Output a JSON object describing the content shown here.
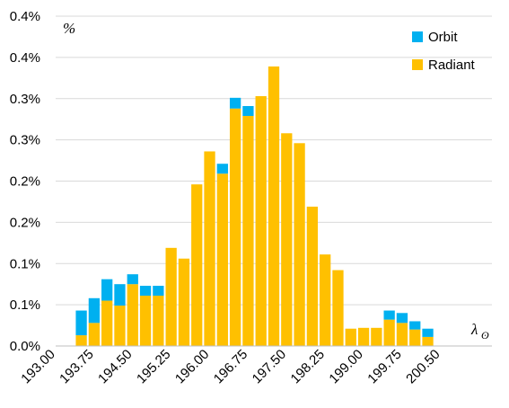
{
  "chart_data": {
    "type": "bar",
    "stacked": true,
    "y_unit_label": "%",
    "x_unit_label": "λ",
    "x_unit_subscript": "ʘ",
    "xlim": [
      193.0,
      201.5
    ],
    "ylim": [
      0,
      0.4
    ],
    "grid": "horizontal",
    "legend_position": "top-right",
    "y_tick_values": [
      0.0,
      0.05,
      0.1,
      0.15,
      0.2,
      0.25,
      0.3,
      0.35,
      0.4
    ],
    "y_tick_labels": [
      "0.0%",
      "0.1%",
      "0.1%",
      "0.2%",
      "0.2%",
      "0.3%",
      "0.3%",
      "0.4%",
      "0.4%"
    ],
    "x_tick_values": [
      193.0,
      193.75,
      194.5,
      195.25,
      196.0,
      196.75,
      197.5,
      198.25,
      199.0,
      199.75,
      200.5
    ],
    "x_tick_labels": [
      "193.00",
      "193.75",
      "194.50",
      "195.25",
      "196.00",
      "196.75",
      "197.50",
      "198.25",
      "199.00",
      "199.75",
      "200.50"
    ],
    "x": [
      193.5,
      193.75,
      194.0,
      194.25,
      194.5,
      194.75,
      195.0,
      195.25,
      195.5,
      195.75,
      196.0,
      196.25,
      196.5,
      196.75,
      197.0,
      197.25,
      197.5,
      197.75,
      198.0,
      198.25,
      198.5,
      198.75,
      199.0,
      199.25,
      199.5,
      199.75,
      200.0,
      200.25
    ],
    "series": [
      {
        "name": "Radiant",
        "color": "#FFC000",
        "values": [
          0.013,
          0.028,
          0.055,
          0.049,
          0.075,
          0.061,
          0.061,
          0.119,
          0.106,
          0.196,
          0.236,
          0.209,
          0.288,
          0.279,
          0.303,
          0.339,
          0.258,
          0.246,
          0.169,
          0.111,
          0.092,
          0.021,
          0.022,
          0.022,
          0.032,
          0.028,
          0.02,
          0.011
        ]
      },
      {
        "name": "Orbit",
        "color": "#00B0F0",
        "values": [
          0.03,
          0.03,
          0.026,
          0.026,
          0.012,
          0.012,
          0.012,
          0.0,
          0.0,
          0.0,
          0.0,
          0.012,
          0.013,
          0.012,
          0.0,
          0.0,
          0.0,
          0.0,
          0.0,
          0.0,
          0.0,
          0.0,
          0.0,
          0.0,
          0.011,
          0.012,
          0.01,
          0.01
        ]
      }
    ],
    "legend": [
      "Orbit",
      "Radiant"
    ]
  }
}
